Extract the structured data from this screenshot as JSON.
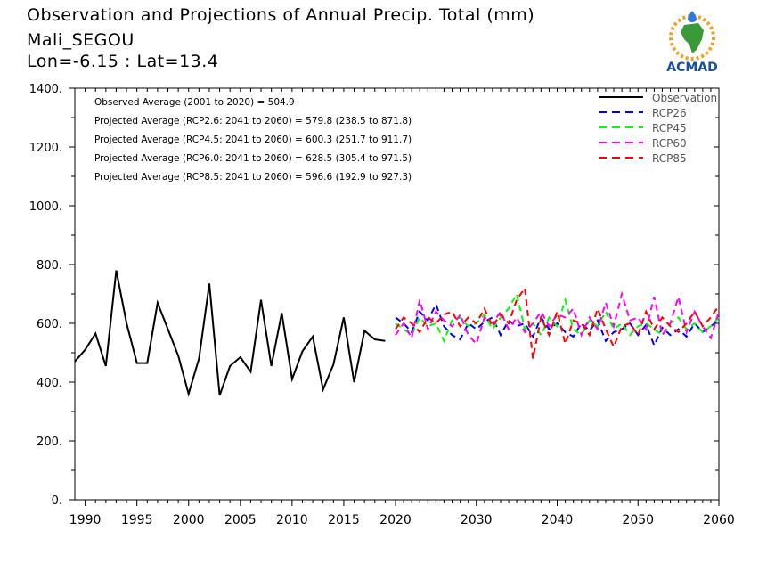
{
  "header": {
    "title": "Observation and Projections of Annual Precip. Total (mm)",
    "location": "Mali_SEGOU",
    "coords": "Lon=-6.15 : Lat=13.4"
  },
  "logo": {
    "text": "ACMAD",
    "icon": "africa-map-logo"
  },
  "colors": {
    "Observation": "#000000",
    "RCP26": "#0000ff",
    "RCP45": "#00ff00",
    "RCP60": "#ff00ff",
    "RCP85": "#ff0000"
  },
  "annotations": [
    "Observed Average (2001 to 2020) = 504.9",
    "Projected Average (RCP2.6: 2041 to 2060) = 579.8 (238.5 to 871.8)",
    "Projected Average (RCP4.5: 2041 to 2060) = 600.3 (251.7 to 911.7)",
    "Projected Average (RCP6.0: 2041 to 2060) = 628.5 (305.4 to 971.5)",
    "Projected Average (RCP8.5: 2041 to 2060) = 596.6 (192.9 to 927.3)"
  ],
  "chart_data": {
    "type": "line",
    "title": "Observation and Projections of Annual Precip. Total (mm)",
    "xlabel": "",
    "ylabel": "",
    "xlim": [
      1989,
      2060
    ],
    "ylim": [
      0,
      1400
    ],
    "grid": false,
    "legend_position": "top-right",
    "x_ticks_left": [
      "1990",
      "1995",
      "2000",
      "2005",
      "2010",
      "2015",
      "2020"
    ],
    "x_ticks_right": [
      "2030",
      "2040",
      "2050",
      "2060"
    ],
    "y_ticks": [
      "0.",
      "200.",
      "400.",
      "600.",
      "800.",
      "1000.",
      "1200.",
      "1400."
    ],
    "series": [
      {
        "name": "Observation",
        "style": "solid",
        "x": [
          1989,
          1990,
          1991,
          1992,
          1993,
          1994,
          1995,
          1996,
          1997,
          1998,
          1999,
          2000,
          2001,
          2002,
          2003,
          2004,
          2005,
          2006,
          2007,
          2008,
          2009,
          2010,
          2011,
          2012,
          2013,
          2014,
          2015,
          2016,
          2017,
          2018,
          2019
        ],
        "y": [
          470,
          510,
          565,
          455,
          780,
          600,
          465,
          465,
          670,
          580,
          490,
          360,
          480,
          735,
          355,
          455,
          485,
          435,
          680,
          455,
          635,
          410,
          505,
          555,
          375,
          460,
          620,
          400,
          575,
          545,
          540
        ]
      },
      {
        "name": "RCP26",
        "style": "dashed",
        "x": [
          2020,
          2021,
          2022,
          2023,
          2024,
          2025,
          2026,
          2027,
          2028,
          2029,
          2030,
          2031,
          2032,
          2033,
          2034,
          2035,
          2036,
          2037,
          2038,
          2039,
          2040,
          2041,
          2042,
          2043,
          2044,
          2045,
          2046,
          2047,
          2048,
          2049,
          2050,
          2051,
          2052,
          2053,
          2054,
          2055,
          2056,
          2057,
          2058,
          2059,
          2060
        ],
        "y": [
          620,
          600,
          570,
          640,
          610,
          665,
          590,
          560,
          545,
          600,
          580,
          605,
          620,
          560,
          610,
          590,
          600,
          555,
          620,
          580,
          600,
          570,
          555,
          600,
          575,
          610,
          540,
          570,
          580,
          600,
          560,
          595,
          525,
          585,
          560,
          580,
          555,
          600,
          570,
          590,
          610
        ]
      },
      {
        "name": "RCP45",
        "style": "dashed",
        "x": [
          2020,
          2021,
          2022,
          2023,
          2024,
          2025,
          2026,
          2027,
          2028,
          2029,
          2030,
          2031,
          2032,
          2033,
          2034,
          2035,
          2036,
          2037,
          2038,
          2039,
          2040,
          2041,
          2042,
          2043,
          2044,
          2045,
          2046,
          2047,
          2048,
          2049,
          2050,
          2051,
          2052,
          2053,
          2054,
          2055,
          2056,
          2057,
          2058,
          2059,
          2060
        ],
        "y": [
          600,
          580,
          560,
          620,
          590,
          600,
          540,
          610,
          620,
          590,
          600,
          630,
          580,
          620,
          650,
          700,
          580,
          600,
          560,
          620,
          590,
          680,
          580,
          560,
          610,
          590,
          640,
          580,
          600,
          560,
          590,
          600,
          580,
          560,
          600,
          620,
          580,
          600,
          570,
          590,
          620
        ]
      },
      {
        "name": "RCP60",
        "style": "dashed",
        "x": [
          2020,
          2021,
          2022,
          2023,
          2024,
          2025,
          2026,
          2027,
          2028,
          2029,
          2030,
          2031,
          2032,
          2033,
          2034,
          2035,
          2036,
          2037,
          2038,
          2039,
          2040,
          2041,
          2042,
          2043,
          2044,
          2045,
          2046,
          2047,
          2048,
          2049,
          2050,
          2051,
          2052,
          2053,
          2054,
          2055,
          2056,
          2057,
          2058,
          2059,
          2060
        ],
        "y": [
          560,
          600,
          550,
          680,
          580,
          640,
          610,
          590,
          630,
          560,
          530,
          620,
          600,
          640,
          580,
          620,
          570,
          600,
          640,
          590,
          630,
          620,
          650,
          560,
          620,
          580,
          670,
          590,
          700,
          610,
          620,
          580,
          690,
          560,
          600,
          690,
          570,
          640,
          590,
          550,
          640
        ]
      },
      {
        "name": "RCP85",
        "style": "dashed",
        "x": [
          2020,
          2021,
          2022,
          2023,
          2024,
          2025,
          2026,
          2027,
          2028,
          2029,
          2030,
          2031,
          2032,
          2033,
          2034,
          2035,
          2036,
          2037,
          2038,
          2039,
          2040,
          2041,
          2042,
          2043,
          2044,
          2045,
          2046,
          2047,
          2048,
          2049,
          2050,
          2051,
          2052,
          2053,
          2054,
          2055,
          2056,
          2057,
          2058,
          2059,
          2060
        ],
        "y": [
          580,
          620,
          600,
          570,
          620,
          600,
          630,
          640,
          590,
          620,
          600,
          650,
          590,
          630,
          600,
          680,
          720,
          480,
          620,
          560,
          640,
          530,
          610,
          600,
          560,
          650,
          580,
          520,
          590,
          600,
          560,
          640,
          580,
          620,
          590,
          570,
          600,
          640,
          590,
          620,
          660
        ]
      }
    ]
  }
}
